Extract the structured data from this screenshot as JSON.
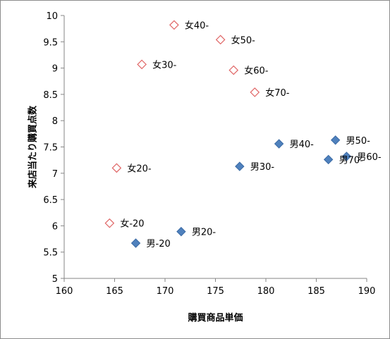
{
  "chart_data": {
    "type": "scatter",
    "title": "",
    "xlabel": "購買商品単価",
    "ylabel": "来店当たり購買点数",
    "xlim": [
      160,
      190
    ],
    "ylim": [
      5,
      10
    ],
    "x_ticks": [
      "160",
      "165",
      "170",
      "175",
      "180",
      "185",
      "190"
    ],
    "y_ticks": [
      "5",
      "5.5",
      "6",
      "6.5",
      "7",
      "7.5",
      "8",
      "8.5",
      "9",
      "9.5",
      "10"
    ],
    "grid": false,
    "legend": "none",
    "series": [
      {
        "marker": "hollow-diamond",
        "color": "#e06666",
        "points": [
          {
            "label": "女-20",
            "x": 164.5,
            "y": 6.05
          },
          {
            "label": "女20-",
            "x": 165.2,
            "y": 7.1
          },
          {
            "label": "女30-",
            "x": 167.7,
            "y": 9.07
          },
          {
            "label": "女40-",
            "x": 170.9,
            "y": 9.82
          },
          {
            "label": "女50-",
            "x": 175.5,
            "y": 9.54
          },
          {
            "label": "女60-",
            "x": 176.8,
            "y": 8.96
          },
          {
            "label": "女70-",
            "x": 178.9,
            "y": 8.54
          }
        ]
      },
      {
        "marker": "filled-diamond",
        "color": "#4f81bd",
        "points": [
          {
            "label": "男-20",
            "x": 167.1,
            "y": 5.67
          },
          {
            "label": "男20-",
            "x": 171.6,
            "y": 5.89
          },
          {
            "label": "男30-",
            "x": 177.4,
            "y": 7.13
          },
          {
            "label": "男40-",
            "x": 181.3,
            "y": 7.56
          },
          {
            "label": "男50-",
            "x": 186.9,
            "y": 7.63
          },
          {
            "label": "男60-",
            "x": 188.0,
            "y": 7.32
          },
          {
            "label": "男70-",
            "x": 186.2,
            "y": 7.26
          }
        ]
      }
    ]
  }
}
